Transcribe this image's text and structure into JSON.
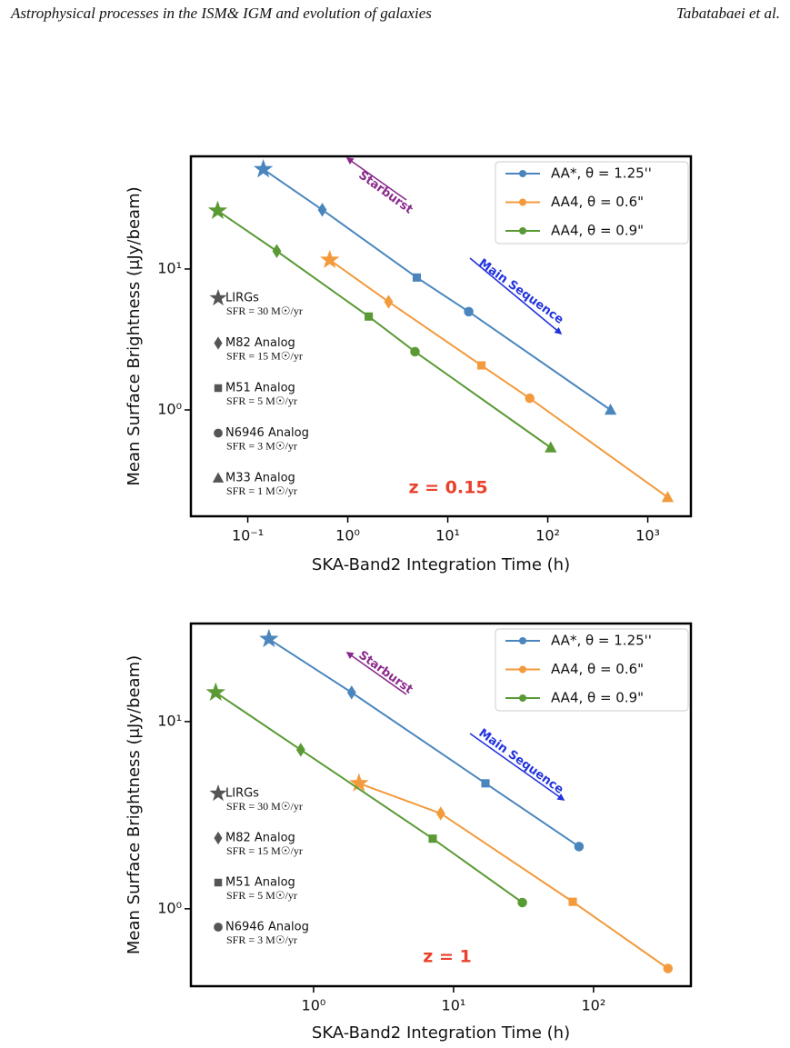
{
  "header": {
    "title": "Astrophysical processes in the ISM& IGM and evolution of galaxies",
    "authors": "Tabatabaei et al."
  },
  "chart_data": [
    {
      "type": "line",
      "log_x": true,
      "log_y": true,
      "x_label": "SKA-Band2 Integration Time (h)",
      "y_label": "Mean Surface Brightness (μJy/beam)",
      "xlim": [
        0.027,
        2700
      ],
      "ylim": [
        0.176,
        63
      ],
      "xticks": [
        {
          "value": 0.1,
          "label": "10⁻¹"
        },
        {
          "value": 1,
          "label": "10⁰"
        },
        {
          "value": 10,
          "label": "10¹"
        },
        {
          "value": 100,
          "label": "10²"
        },
        {
          "value": 1000,
          "label": "10³"
        }
      ],
      "yticks": [
        {
          "value": 1,
          "label": "10⁰"
        },
        {
          "value": 10,
          "label": "10¹"
        }
      ],
      "legend": "upper right",
      "markers": [
        "star",
        "diamond",
        "square",
        "circle",
        "triangle"
      ],
      "marker_color": "#555555",
      "marker_legend": [
        {
          "label": "LIRGs",
          "note": "SFR = 30 M☉/yr"
        },
        {
          "label": "M82 Analog",
          "note": "SFR = 15 M☉/yr"
        },
        {
          "label": "M51 Analog",
          "note": "SFR = 5 M☉/yr"
        },
        {
          "label": "N6946 Analog",
          "note": "SFR = 3 M☉/yr"
        },
        {
          "label": "M33 Analog",
          "note": "SFR = 1 M☉/yr"
        }
      ],
      "annotations": {
        "starburst": "Starburst",
        "main_sequence": "Main Sequence",
        "redshift": "z = 0.15"
      },
      "series": [
        {
          "name": "AA*, θ = 1.25''",
          "color": "#4a86bd",
          "x": [
            0.143,
            0.556,
            4.9,
            16.2,
            424
          ],
          "values": [
            51,
            26.3,
            8.7,
            4.98,
            1.0
          ]
        },
        {
          "name": "AA4, θ = 0.6\"",
          "color": "#f39a3c",
          "x": [
            0.66,
            2.56,
            21.7,
            66,
            1580
          ],
          "values": [
            11.6,
            5.85,
            2.07,
            1.21,
            0.24
          ]
        },
        {
          "name": "AA4, θ = 0.9\"",
          "color": "#5a9a35",
          "x": [
            0.05,
            0.195,
            1.62,
            4.7,
            107
          ],
          "values": [
            25.9,
            13.4,
            4.6,
            2.59,
            0.54
          ]
        }
      ]
    },
    {
      "type": "line",
      "log_x": true,
      "log_y": true,
      "x_label": "SKA-Band2 Integration Time (h)",
      "y_label": "Mean Surface Brightness (μJy/beam)",
      "xlim": [
        0.133,
        496
      ],
      "ylim": [
        0.386,
        33.4
      ],
      "xticks": [
        {
          "value": 1,
          "label": "10⁰"
        },
        {
          "value": 10,
          "label": "10¹"
        },
        {
          "value": 100,
          "label": "10²"
        }
      ],
      "yticks": [
        {
          "value": 1,
          "label": "10⁰"
        },
        {
          "value": 10,
          "label": "10¹"
        }
      ],
      "legend": "upper right",
      "markers": [
        "star",
        "diamond",
        "square",
        "circle"
      ],
      "marker_color": "#555555",
      "marker_legend": [
        {
          "label": "LIRGs",
          "note": "SFR = 30 M☉/yr"
        },
        {
          "label": "M82 Analog",
          "note": "SFR = 15 M☉/yr"
        },
        {
          "label": "M51 Analog",
          "note": "SFR = 5 M☉/yr"
        },
        {
          "label": "N6946 Analog",
          "note": "SFR = 3 M☉/yr"
        }
      ],
      "annotations": {
        "starburst": "Starburst",
        "main_sequence": "Main Sequence",
        "redshift": "z = 1"
      },
      "series": [
        {
          "name": "AA*, θ = 1.25''",
          "color": "#4a86bd",
          "x": [
            0.48,
            1.87,
            16.9,
            78.7
          ],
          "values": [
            27.6,
            14.3,
            4.68,
            2.15
          ]
        },
        {
          "name": "AA4, θ = 0.6\"",
          "color": "#f39a3c",
          "x": [
            2.11,
            8.1,
            71,
            340
          ],
          "values": [
            4.68,
            3.23,
            1.09,
            0.48
          ]
        },
        {
          "name": "AA4, θ = 0.9\"",
          "color": "#5a9a35",
          "x": [
            0.2,
            0.81,
            7.1,
            31
          ],
          "values": [
            14.3,
            7.07,
            2.37,
            1.08
          ]
        }
      ]
    }
  ]
}
